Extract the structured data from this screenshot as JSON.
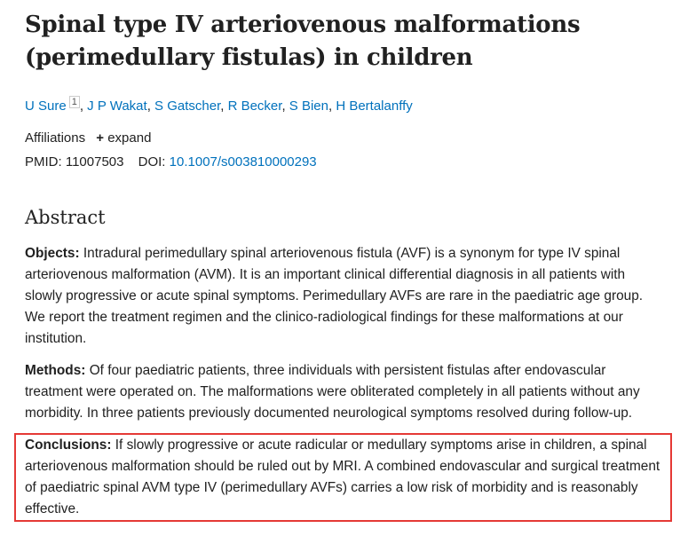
{
  "article": {
    "title": "Spinal type IV arteriovenous malformations (perimedullary fistulas) in children",
    "authors": [
      {
        "name": "U Sure",
        "sup": "1"
      },
      {
        "name": "J P Wakat"
      },
      {
        "name": "S Gatscher"
      },
      {
        "name": "R Becker"
      },
      {
        "name": "S Bien"
      },
      {
        "name": "H Bertalanffy"
      }
    ],
    "author_separator": ",",
    "affiliations_label": "Affiliations",
    "expand_label": "expand",
    "pmid_label": "PMID:",
    "pmid": "11007503",
    "doi_label": "DOI:",
    "doi": "10.1007/s003810000293"
  },
  "abstract": {
    "heading": "Abstract",
    "sections": [
      {
        "label": "Objects:",
        "text": "Intradural perimedullary spinal arteriovenous fistula (AVF) is a synonym for type IV spinal arteriovenous malformation (AVM). It is an important clinical differential diagnosis in all patients with slowly progressive or acute spinal symptoms. Perimedullary AVFs are rare in the paediatric age group. We report the treatment regimen and the clinico-radiological findings for these malformations at our institution."
      },
      {
        "label": "Methods:",
        "text": "Of four paediatric patients, three individuals with persistent fistulas after endovascular treatment were operated on. The malformations were obliterated completely in all patients without any morbidity. In three patients previously documented neurological symptoms resolved during follow-up."
      },
      {
        "label": "Conclusions:",
        "text": "If slowly progressive or acute radicular or medullary symptoms arise in children, a spinal arteriovenous malformation should be ruled out by MRI. A combined endovascular and surgical treatment of paediatric spinal AVM type IV (perimedullary AVFs) carries a low risk of morbidity and is reasonably effective.",
        "highlighted": true
      }
    ]
  }
}
